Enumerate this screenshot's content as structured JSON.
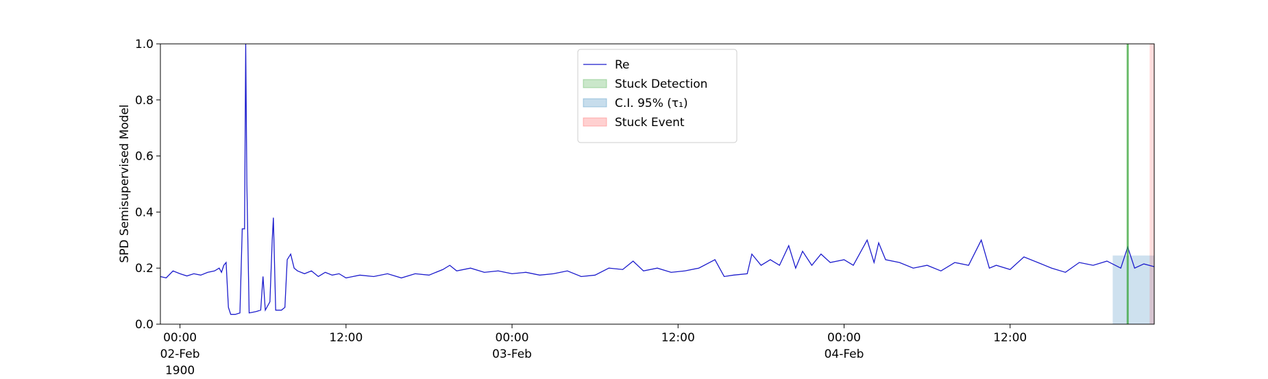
{
  "chart_data": {
    "type": "line",
    "y_label": "SPD Semisupervised Model",
    "x": [
      "1900-02-01 22:35",
      "1900-02-01 23:00",
      "1900-02-01 23:30",
      "1900-02-02 00:00",
      "1900-02-02 00:30",
      "1900-02-02 01:00",
      "1900-02-02 01:30",
      "1900-02-02 02:00",
      "1900-02-02 02:30",
      "1900-02-02 02:50",
      "1900-02-02 03:00",
      "1900-02-02 03:10",
      "1900-02-02 03:20",
      "1900-02-02 03:30",
      "1900-02-02 03:40",
      "1900-02-02 04:00",
      "1900-02-02 04:20",
      "1900-02-02 04:30",
      "1900-02-02 04:40",
      "1900-02-02 04:45",
      "1900-02-02 04:50",
      "1900-02-02 04:55",
      "1900-02-02 05:00",
      "1900-02-02 05:30",
      "1900-02-02 05:50",
      "1900-02-02 06:00",
      "1900-02-02 06:10",
      "1900-02-02 06:30",
      "1900-02-02 06:40",
      "1900-02-02 06:45",
      "1900-02-02 06:55",
      "1900-02-02 07:20",
      "1900-02-02 07:35",
      "1900-02-02 07:45",
      "1900-02-02 08:00",
      "1900-02-02 08:15",
      "1900-02-02 08:30",
      "1900-02-02 09:00",
      "1900-02-02 09:30",
      "1900-02-02 10:00",
      "1900-02-02 10:30",
      "1900-02-02 11:00",
      "1900-02-02 11:30",
      "1900-02-02 12:00",
      "1900-02-02 13:00",
      "1900-02-02 14:00",
      "1900-02-02 15:00",
      "1900-02-02 16:00",
      "1900-02-02 17:00",
      "1900-02-02 18:00",
      "1900-02-02 19:00",
      "1900-02-02 19:30",
      "1900-02-02 20:00",
      "1900-02-02 21:00",
      "1900-02-02 22:00",
      "1900-02-02 23:00",
      "1900-02-03 00:00",
      "1900-02-03 01:00",
      "1900-02-03 02:00",
      "1900-02-03 03:00",
      "1900-02-03 04:00",
      "1900-02-03 05:00",
      "1900-02-03 06:00",
      "1900-02-03 07:00",
      "1900-02-03 08:00",
      "1900-02-03 08:45",
      "1900-02-03 09:30",
      "1900-02-03 10:30",
      "1900-02-03 11:30",
      "1900-02-03 12:30",
      "1900-02-03 13:30",
      "1900-02-03 14:40",
      "1900-02-03 15:20",
      "1900-02-03 16:00",
      "1900-02-03 17:00",
      "1900-02-03 17:20",
      "1900-02-03 18:00",
      "1900-02-03 18:40",
      "1900-02-03 19:20",
      "1900-02-03 20:00",
      "1900-02-03 20:30",
      "1900-02-03 21:00",
      "1900-02-03 21:40",
      "1900-02-03 22:20",
      "1900-02-03 23:00",
      "1900-02-04 00:00",
      "1900-02-04 00:40",
      "1900-02-04 01:20",
      "1900-02-04 01:40",
      "1900-02-04 02:10",
      "1900-02-04 02:30",
      "1900-02-04 03:00",
      "1900-02-04 04:00",
      "1900-02-04 05:00",
      "1900-02-04 06:00",
      "1900-02-04 07:00",
      "1900-02-04 08:00",
      "1900-02-04 09:00",
      "1900-02-04 09:55",
      "1900-02-04 10:30",
      "1900-02-04 11:00",
      "1900-02-04 12:00",
      "1900-02-04 13:00",
      "1900-02-04 14:00",
      "1900-02-04 15:00",
      "1900-02-04 16:00",
      "1900-02-04 17:00",
      "1900-02-04 18:00",
      "1900-02-04 19:00",
      "1900-02-04 20:00",
      "1900-02-04 20:30",
      "1900-02-04 21:00",
      "1900-02-04 21:40",
      "1900-02-04 22:25"
    ],
    "series": [
      {
        "name": "Re",
        "color": "#1a1acc",
        "values": [
          0.17,
          0.165,
          0.19,
          0.18,
          0.172,
          0.18,
          0.175,
          0.185,
          0.19,
          0.2,
          0.185,
          0.21,
          0.22,
          0.06,
          0.035,
          0.035,
          0.04,
          0.34,
          0.34,
          1.0,
          0.5,
          0.27,
          0.04,
          0.045,
          0.05,
          0.17,
          0.05,
          0.08,
          0.3,
          0.38,
          0.05,
          0.05,
          0.06,
          0.23,
          0.25,
          0.2,
          0.19,
          0.18,
          0.19,
          0.17,
          0.185,
          0.175,
          0.18,
          0.165,
          0.175,
          0.17,
          0.18,
          0.165,
          0.18,
          0.175,
          0.195,
          0.21,
          0.19,
          0.2,
          0.185,
          0.19,
          0.18,
          0.185,
          0.175,
          0.18,
          0.19,
          0.17,
          0.175,
          0.2,
          0.195,
          0.225,
          0.19,
          0.2,
          0.185,
          0.19,
          0.2,
          0.23,
          0.17,
          0.175,
          0.18,
          0.25,
          0.21,
          0.23,
          0.21,
          0.28,
          0.2,
          0.26,
          0.21,
          0.25,
          0.22,
          0.23,
          0.21,
          0.27,
          0.3,
          0.22,
          0.29,
          0.23,
          0.22,
          0.2,
          0.21,
          0.19,
          0.22,
          0.21,
          0.3,
          0.2,
          0.21,
          0.195,
          0.24,
          0.22,
          0.2,
          0.185,
          0.22,
          0.21,
          0.225,
          0.2,
          0.275,
          0.2,
          0.215,
          0.205
        ]
      }
    ],
    "detection": {
      "name": "Stuck Detection",
      "color": "#2ca02c",
      "x": "1900-02-04 20:30"
    },
    "confidence": {
      "name": "C.I. 95% (τ₁)",
      "color": "#1f77b4",
      "x": [
        "1900-02-04 19:25",
        "1900-02-04 22:25"
      ],
      "y": [
        0,
        0.245
      ]
    },
    "event": {
      "name": "Stuck Event",
      "color": "#ff4444",
      "x": [
        "1900-02-04 22:05",
        "1900-02-04 22:25"
      ]
    },
    "xlim": [
      "1900-02-01 22:35",
      "1900-02-04 22:25"
    ],
    "xticks": [
      {
        "value": "1900-02-02 00:00",
        "label": "00:00\n02-Feb\n1900"
      },
      {
        "value": "1900-02-02 12:00",
        "label": "12:00"
      },
      {
        "value": "1900-02-03 00:00",
        "label": "00:00\n03-Feb"
      },
      {
        "value": "1900-02-03 12:00",
        "label": "12:00"
      },
      {
        "value": "1900-02-04 00:00",
        "label": "00:00\n04-Feb"
      },
      {
        "value": "1900-02-04 12:00",
        "label": "12:00"
      }
    ],
    "ylim": [
      0,
      1
    ],
    "yticks": [
      {
        "value": 0,
        "label": "0.0"
      },
      {
        "value": 0.2,
        "label": "0.2"
      },
      {
        "value": 0.4,
        "label": "0.4"
      },
      {
        "value": 0.6,
        "label": "0.6"
      },
      {
        "value": 0.8,
        "label": "0.8"
      },
      {
        "value": 1,
        "label": "1.0"
      }
    ],
    "legend": "upper center",
    "grid": false
  }
}
